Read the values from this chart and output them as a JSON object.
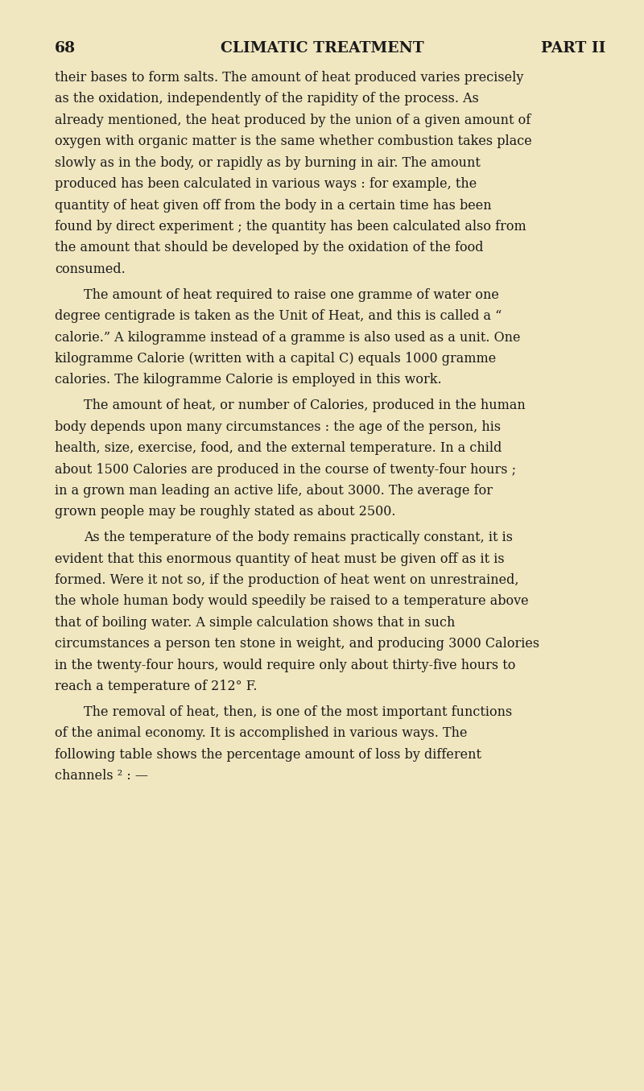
{
  "background_color": "#f0e6c0",
  "page_number": "68",
  "header_center": "CLIMATIC TREATMENT",
  "header_right": "PART II",
  "text_color": "#1a1a1a",
  "header_fontsize": 13.5,
  "body_fontsize": 11.5,
  "paragraphs": [
    {
      "indent": false,
      "text": "their bases to form salts.  The amount of heat produced varies precisely as the oxidation, independently of the rapidity of the process.  As already mentioned, the heat produced by the union of a given amount of oxygen with organic matter is the same whether combustion takes place slowly as in the body, or rapidly as by burning in air.  The amount produced has been calculated in various ways : for example, the quantity of heat given off from the body in a certain time has been found by direct experiment ; the quantity has been calculated also from the amount that should be developed by the oxidation of the food consumed."
    },
    {
      "indent": true,
      "text": "The amount of heat required to raise one gramme of water one degree centigrade is taken as the Unit of Heat, and this is called a “ calorie.”  A kilogramme instead of a gramme is also used as a unit.  One kilogramme Calorie (written with a capital C) equals 1000 gramme calories. The kilogramme Calorie is employed in this work."
    },
    {
      "indent": true,
      "text": "The amount of heat, or number of Calories, produced in the human body depends upon many circumstances : the age of the person, his health, size, exercise, food, and the external temperature.  In a child about 1500 Calories are produced in the course of twenty-four hours ; in a grown man leading an active life, about 3000.  The average for grown people may be roughly stated as about 2500."
    },
    {
      "indent": true,
      "text": "As the temperature of the body remains practically constant, it is evident that this enormous quantity of heat must be given off as it is formed.  Were it not so, if the production of heat went on unrestrained, the whole human body would speedily be raised to a temperature above that of boiling water.  A simple calculation shows that in such circumstances a person ten stone in weight, and producing 3000 Calories in the twenty-four hours, would require only about thirty-five hours to reach a temperature of 212° F."
    },
    {
      "indent": true,
      "text": "The removal of heat, then, is one of the most important functions of the animal economy.  It is accomplished in various ways.  The following table shows the percentage amount of loss by different channels ² : —"
    }
  ]
}
